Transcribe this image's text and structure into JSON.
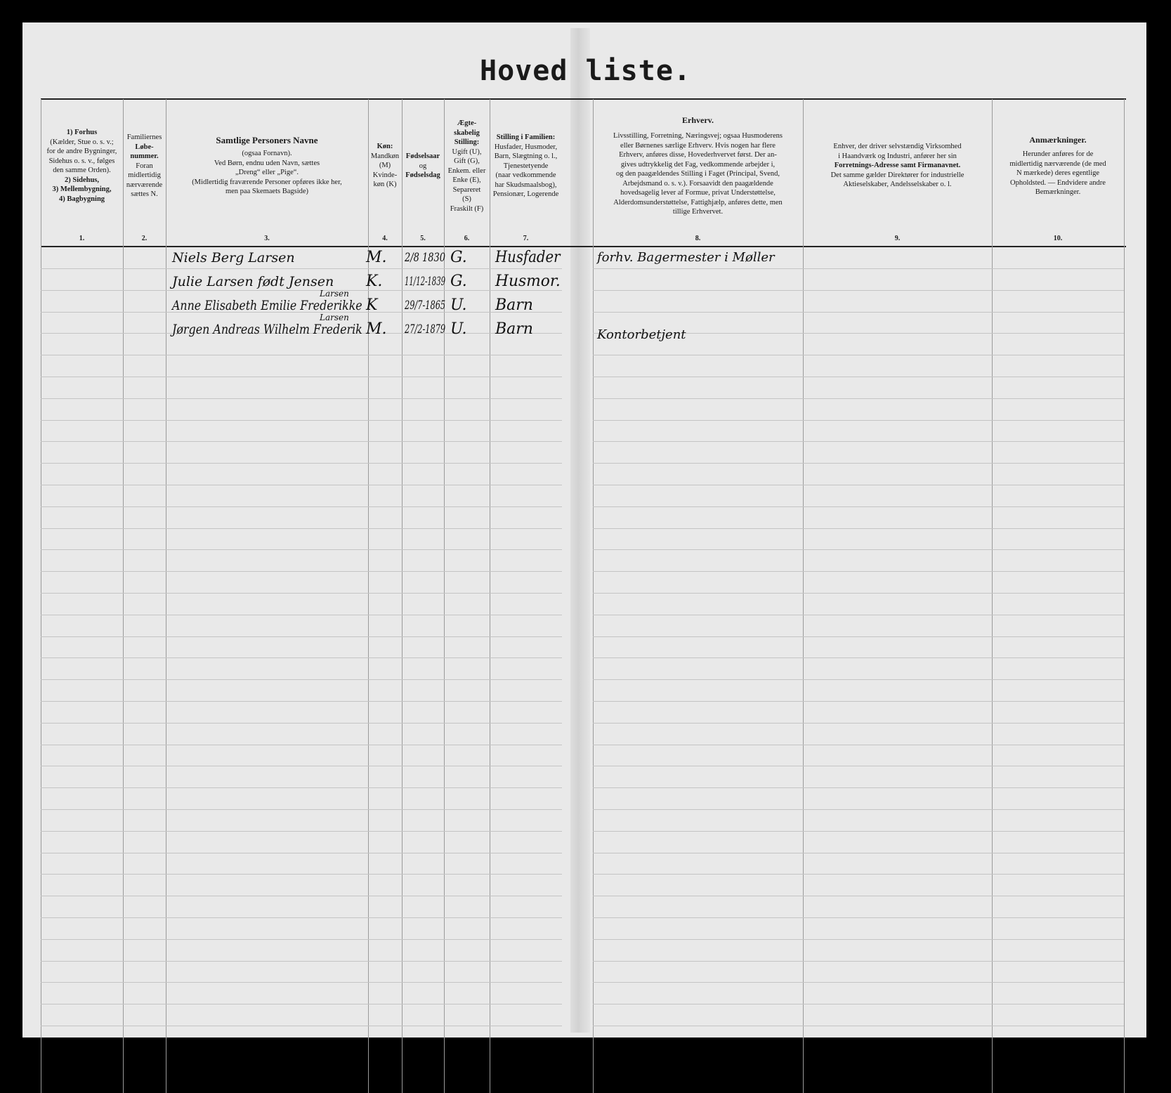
{
  "title": "Hoved liste.",
  "columns": [
    {
      "number": "1.",
      "lines": [
        "1) Forhus",
        "(Kælder, Stue o. s. v.;",
        "for de andre Bygninger,",
        "Sidehus o. s. v., følges",
        "den samme Orden).",
        "2) Sidehus,",
        "3) Mellembygning,",
        "4) Bagbygning"
      ]
    },
    {
      "number": "2.",
      "lines": [
        "Familiernes",
        "Løbe-",
        "nummer.",
        "Foran",
        "midlertidig",
        "nærværende",
        "sættes N."
      ]
    },
    {
      "number": "3.",
      "lines": [
        "Samtlige Personers Navne",
        "(ogsaa Fornavn).",
        "Ved Børn, endnu uden Navn, sættes",
        "„Dreng“ eller „Pige“.",
        "(Midlertidig fraværende Personer opføres ikke her,",
        "men paa Skemaets Bagside)"
      ]
    },
    {
      "number": "4.",
      "lines": [
        "Køn:",
        "Mandkøn",
        "(M)",
        "Kvinde-",
        "køn (K)"
      ]
    },
    {
      "number": "5.",
      "lines": [
        "Fødselsaar",
        "og",
        "Fødselsdag"
      ]
    },
    {
      "number": "6.",
      "lines": [
        "Ægte-",
        "skabelig",
        "Stilling:",
        "Ugift (U),",
        "Gift (G),",
        "Enkem. eller",
        "Enke (E),",
        "Separeret",
        "(S)",
        "Fraskilt (F)"
      ]
    },
    {
      "number": "7.",
      "lines": [
        "Stilling i Familien:",
        "Husfader, Husmoder,",
        "Barn, Slægtning o. l.,",
        "Tjenestetyende",
        "(naar vedkommende",
        "har Skudsmaalsbog),",
        "Pensionær, Logerende"
      ]
    },
    {
      "number": "8.",
      "lines": [
        "Erhverv.",
        "Livsstilling, Forretning, Næringsvej; ogsaa Husmoderens",
        "eller Børnenes særlige Erhverv. Hvis nogen har flere",
        "Erhverv, anføres disse, Hovederhvervet først. Der an-",
        "gives udtrykkelig det Fag, vedkommende arbejder i,",
        "og den paagældendes Stilling i Faget (Principal, Svend,",
        "Arbejdsmand o. s. v.). Forsaavidt den paagældende",
        "hovedsagelig lever af Formue, privat Understøttelse,",
        "Alderdomsunderstøttelse, Fattighjælp, anføres dette, men",
        "tillige Erhvervet."
      ]
    },
    {
      "number": "9.",
      "lines": [
        "Enhver, der driver selvstændig Virksomhed",
        "i Haandværk og Industri, anfører her sin",
        "Forretnings-Adresse samt Firmanavnet.",
        "Det samme gælder Direktører for industrielle",
        "Aktieselskaber, Andelsselskaber o. l."
      ]
    },
    {
      "number": "10.",
      "lines": [
        "Anmærkninger.",
        "Herunder anføres for de",
        "midlertidig nærværende (de med",
        "N mærkede) deres egentlige",
        "Opholdsted. — Endvidere andre",
        "Bemærkninger."
      ]
    }
  ],
  "entries": [
    {
      "name": "Niels Berg Larsen",
      "name_note": "",
      "sex": "M.",
      "born": "2/8 1830",
      "marital": "G.",
      "family_role": "Husfader",
      "occupation": "forhv. Bagermester i Møller"
    },
    {
      "name": "Julie Larsen født Jensen",
      "name_note": "",
      "sex": "K.",
      "born": "11/12-1839",
      "marital": "G.",
      "family_role": "Husmor.",
      "occupation": ""
    },
    {
      "name": "Anne Elisabeth Emilie Frederikke",
      "name_note": "Larsen",
      "sex": "K",
      "born": "29/7-1865",
      "marital": "U.",
      "family_role": "Barn",
      "occupation": ""
    },
    {
      "name": "Jørgen Andreas Wilhelm Frederik",
      "name_note": "Larsen",
      "sex": "M.",
      "born": "27/2-1879",
      "marital": "U.",
      "family_role": "Barn",
      "occupation": "Kontorbetjent"
    }
  ]
}
